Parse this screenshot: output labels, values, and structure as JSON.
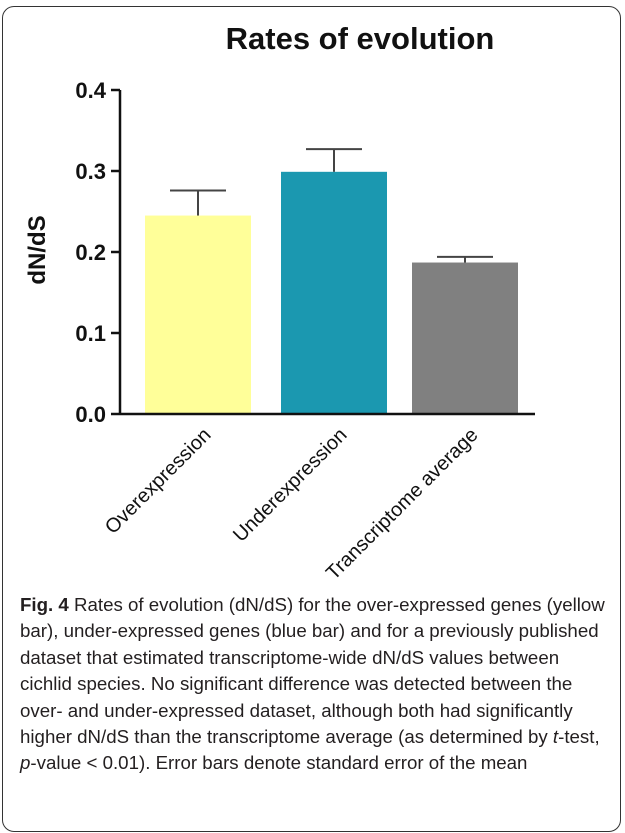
{
  "chart_data": {
    "type": "bar",
    "title": "Rates of evolution",
    "xlabel": "",
    "ylabel": "dN/dS",
    "ylim": [
      0,
      0.4
    ],
    "yticks": [
      "0.0",
      "0.1",
      "0.2",
      "0.3",
      "0.4"
    ],
    "categories": [
      "Overexpression",
      "Underexpression",
      "Transcriptome average"
    ],
    "values": [
      0.245,
      0.299,
      0.187
    ],
    "error": [
      0.031,
      0.028,
      0.007
    ],
    "colors": [
      "#ffff99",
      "#1b98b0",
      "#808080"
    ],
    "grid": false,
    "legend": "none"
  },
  "caption": {
    "label": "Fig. 4",
    "text_1": " Rates of evolution (dN/dS) for the over-expressed genes (yellow bar), under-expressed genes (blue bar) and for a previously published dataset that estimated transcriptome-wide dN/dS values between cichlid species. No significant difference was detected between the over- and under-expressed dataset, although both had significantly higher dN/dS than the transcriptome average (as determined by ",
    "t_italic": "t",
    "text_2": "-test, ",
    "p_italic": "p",
    "text_3": "-value < 0.01). Error bars denote standard error of the mean"
  }
}
